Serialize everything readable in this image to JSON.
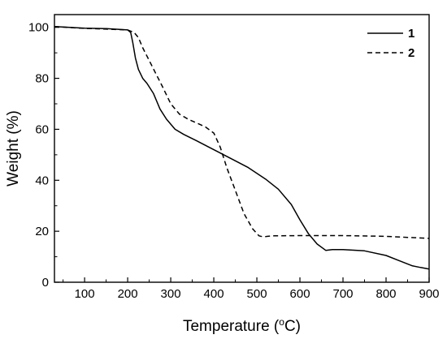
{
  "chart_data": {
    "type": "line",
    "title": "",
    "xlabel": "Temperature (°C)",
    "ylabel": "Weight (%)",
    "xlim": [
      30,
      900
    ],
    "ylim": [
      0,
      105
    ],
    "x_ticks": [
      100,
      200,
      300,
      400,
      500,
      600,
      700,
      800,
      900
    ],
    "y_ticks": [
      0,
      20,
      40,
      60,
      80,
      100
    ],
    "grid": false,
    "legend": "top-right",
    "series": [
      {
        "name": "1",
        "style": "solid",
        "color": "#000000",
        "x": [
          30,
          100,
          150,
          200,
          207,
          212,
          218,
          225,
          235,
          245,
          260,
          275,
          290,
          310,
          330,
          360,
          400,
          440,
          480,
          520,
          550,
          580,
          600,
          620,
          640,
          660,
          675,
          700,
          750,
          800,
          830,
          860,
          880,
          900
        ],
        "y": [
          100.3,
          99.7,
          99.5,
          99.0,
          98.0,
          94.0,
          88.0,
          83.5,
          80.0,
          78.0,
          74.0,
          68.0,
          64.0,
          60.0,
          58.0,
          55.5,
          52.0,
          48.5,
          45.0,
          40.5,
          36.5,
          30.5,
          24.5,
          19.0,
          15.0,
          12.5,
          12.8,
          12.8,
          12.3,
          10.5,
          8.5,
          6.5,
          5.8,
          5.2
        ]
      },
      {
        "name": "2",
        "style": "dashed",
        "color": "#000000",
        "x": [
          30,
          100,
          150,
          200,
          215,
          225,
          235,
          250,
          265,
          280,
          300,
          320,
          340,
          360,
          380,
          400,
          415,
          430,
          450,
          470,
          490,
          505,
          515,
          525,
          540,
          600,
          700,
          800,
          850,
          900
        ],
        "y": [
          100.3,
          99.6,
          99.3,
          99.0,
          98.0,
          96.0,
          92.0,
          87.0,
          82.0,
          77.0,
          70.0,
          66.0,
          64.0,
          62.5,
          61.0,
          58.5,
          53.0,
          45.0,
          36.0,
          27.0,
          21.0,
          18.2,
          17.8,
          18.0,
          18.2,
          18.3,
          18.3,
          18.0,
          17.6,
          17.2
        ]
      }
    ]
  },
  "axes": {
    "xlabel_main": "Temperature (",
    "xlabel_sup": "o",
    "xlabel_end": "C)",
    "ylabel": "Weight (%)"
  }
}
